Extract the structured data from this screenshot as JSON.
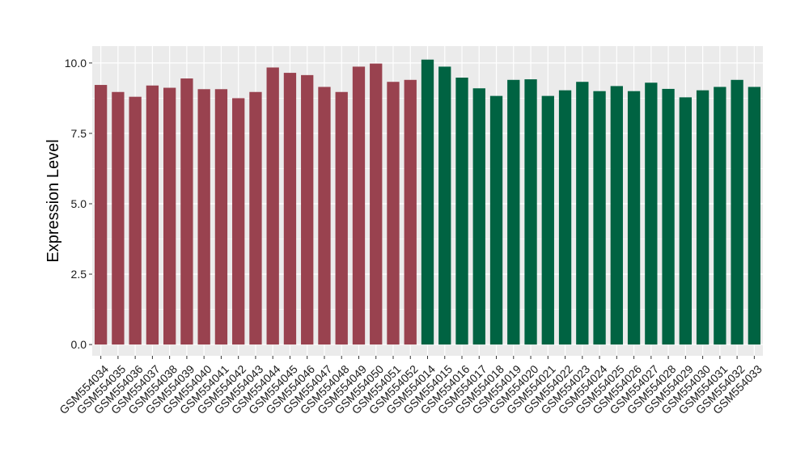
{
  "chart_data": {
    "type": "bar",
    "ylabel": "Expression Level",
    "xlabel": "",
    "ylim": [
      -0.4,
      10.6
    ],
    "yticks": [
      0.0,
      2.5,
      5.0,
      7.5,
      10.0
    ],
    "ytick_labels": [
      "0.0",
      "2.5",
      "5.0",
      "7.5",
      "10.0"
    ],
    "grid": true,
    "panel_background": "#ebebeb",
    "grid_color": "#ffffff",
    "categories": [
      "GSM554034",
      "GSM554035",
      "GSM554036",
      "GSM554037",
      "GSM554038",
      "GSM554039",
      "GSM554040",
      "GSM554041",
      "GSM554042",
      "GSM554043",
      "GSM554044",
      "GSM554045",
      "GSM554046",
      "GSM554047",
      "GSM554048",
      "GSM554049",
      "GSM554050",
      "GSM554051",
      "GSM554052",
      "GSM554014",
      "GSM554015",
      "GSM554016",
      "GSM554017",
      "GSM554018",
      "GSM554019",
      "GSM554020",
      "GSM554021",
      "GSM554022",
      "GSM554023",
      "GSM554024",
      "GSM554025",
      "GSM554026",
      "GSM554027",
      "GSM554028",
      "GSM554029",
      "GSM554030",
      "GSM554031",
      "GSM554032",
      "GSM554033"
    ],
    "values": [
      9.22,
      8.97,
      8.8,
      9.2,
      9.12,
      9.45,
      9.07,
      9.07,
      8.75,
      8.97,
      9.84,
      9.65,
      9.57,
      9.15,
      8.97,
      9.87,
      9.98,
      9.33,
      9.4,
      10.12,
      9.87,
      9.48,
      9.1,
      8.83,
      9.4,
      9.42,
      8.83,
      9.03,
      9.33,
      9.0,
      9.18,
      9.0,
      9.3,
      9.08,
      8.78,
      9.03,
      9.15,
      9.4,
      9.15
    ],
    "colors": [
      "#99424f",
      "#99424f",
      "#99424f",
      "#99424f",
      "#99424f",
      "#99424f",
      "#99424f",
      "#99424f",
      "#99424f",
      "#99424f",
      "#99424f",
      "#99424f",
      "#99424f",
      "#99424f",
      "#99424f",
      "#99424f",
      "#99424f",
      "#99424f",
      "#99424f",
      "#006342",
      "#006342",
      "#006342",
      "#006342",
      "#006342",
      "#006342",
      "#006342",
      "#006342",
      "#006342",
      "#006342",
      "#006342",
      "#006342",
      "#006342",
      "#006342",
      "#006342",
      "#006342",
      "#006342",
      "#006342",
      "#006342",
      "#006342"
    ]
  }
}
